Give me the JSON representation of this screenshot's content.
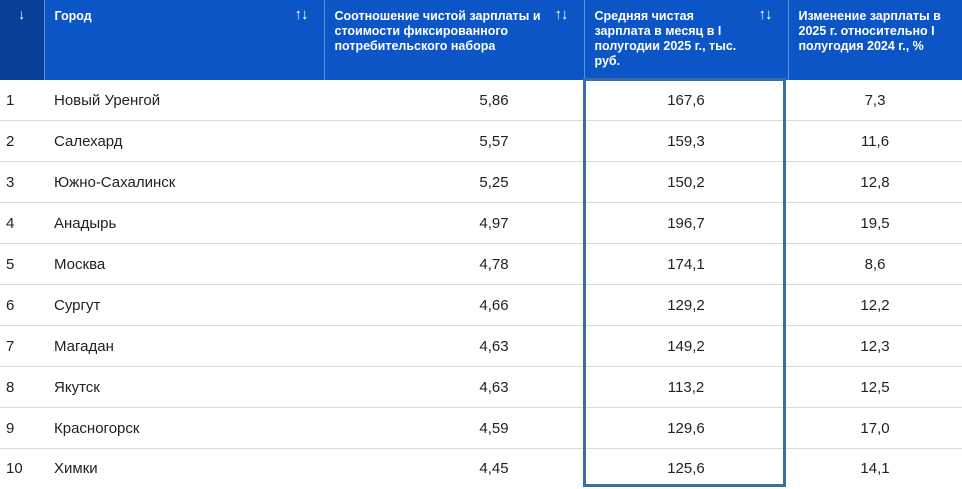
{
  "table": {
    "columns": [
      {
        "label": "↓",
        "sort_icon": ""
      },
      {
        "label": "Город",
        "sort_icon": "↑↓"
      },
      {
        "label": "Соотношение чистой зарплаты и стоимости фиксированного потребительского набора",
        "sort_icon": "↑↓"
      },
      {
        "label": "Средняя чистая зарплата в месяц в I полугодии 2025 г., тыс. руб.",
        "sort_icon": "↑↓"
      },
      {
        "label": "Изменение зарплаты в 2025 г. относительно I полугодия 2024 г., %",
        "sort_icon": ""
      }
    ],
    "rows": [
      {
        "rank": "1",
        "city": "Новый Уренгой",
        "ratio": "5,86",
        "salary": "167,6",
        "change": "7,3"
      },
      {
        "rank": "2",
        "city": "Салехард",
        "ratio": "5,57",
        "salary": "159,3",
        "change": "11,6"
      },
      {
        "rank": "3",
        "city": "Южно-Сахалинск",
        "ratio": "5,25",
        "salary": "150,2",
        "change": "12,8"
      },
      {
        "rank": "4",
        "city": "Анадырь",
        "ratio": "4,97",
        "salary": "196,7",
        "change": "19,5"
      },
      {
        "rank": "5",
        "city": "Москва",
        "ratio": "4,78",
        "salary": "174,1",
        "change": "8,6"
      },
      {
        "rank": "6",
        "city": "Сургут",
        "ratio": "4,66",
        "salary": "129,2",
        "change": "12,2"
      },
      {
        "rank": "7",
        "city": "Магадан",
        "ratio": "4,63",
        "salary": "149,2",
        "change": "12,3"
      },
      {
        "rank": "8",
        "city": "Якутск",
        "ratio": "4,63",
        "salary": "113,2",
        "change": "12,5"
      },
      {
        "rank": "9",
        "city": "Красногорск",
        "ratio": "4,59",
        "salary": "129,6",
        "change": "17,0"
      },
      {
        "rank": "10",
        "city": "Химки",
        "ratio": "4,45",
        "salary": "125,6",
        "change": "14,1"
      }
    ]
  },
  "colors": {
    "header_bg": "#0b55c7",
    "index_header_bg": "#0a3f99",
    "highlight_border": "#3a6ea5"
  }
}
